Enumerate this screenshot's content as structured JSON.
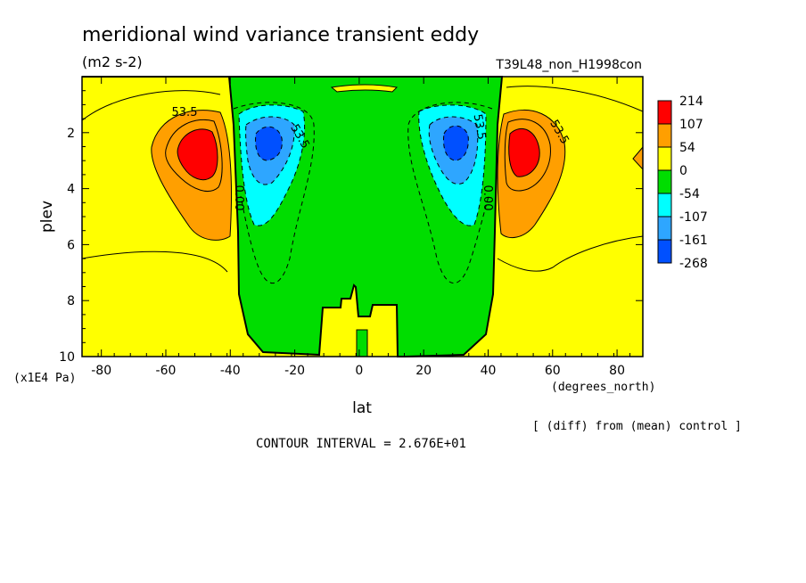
{
  "chart_data": {
    "type": "contour",
    "title": "meridional wind variance transient eddy",
    "units": "(m2 s-2)",
    "run_label": "T39L48_non_H1998con",
    "xlabel": "lat",
    "x_units": "(degrees_north)",
    "ylabel": "plev",
    "y_units": "(x1E4 Pa)",
    "xlim": [
      -86,
      88
    ],
    "ylim": [
      10,
      0
    ],
    "x_ticks": [
      -80,
      -60,
      -40,
      -20,
      0,
      20,
      40,
      60,
      80
    ],
    "y_ticks": [
      2,
      4,
      6,
      8,
      10
    ],
    "legend": {
      "levels": [
        "214",
        "107",
        "54",
        "0",
        "-54",
        "-107",
        "-161",
        "-268"
      ],
      "colors": [
        "#ff0000",
        "#ff9f00",
        "#ffff00",
        "#00dd00",
        "#00ffff",
        "#2ea6ff",
        "#0050ff"
      ]
    },
    "contour_labels": [
      "53.5",
      "53.5",
      "53.5",
      "53.5",
      "0.00",
      "0.00"
    ],
    "interval_text": "CONTOUR INTERVAL = 2.676E+01",
    "diff_note": "[ (diff) from (mean) control ]",
    "features": [
      {
        "name": "southern-positive-core",
        "lat": -50,
        "plev": 2.8,
        "level": "214"
      },
      {
        "name": "northern-positive-core",
        "lat": 48,
        "plev": 2.7,
        "level": "214"
      },
      {
        "name": "southern-negative-core",
        "lat": -30,
        "plev": 2.4,
        "level": "-268"
      },
      {
        "name": "northern-negative-core",
        "lat": 30,
        "plev": 2.4,
        "level": "-268"
      }
    ]
  }
}
